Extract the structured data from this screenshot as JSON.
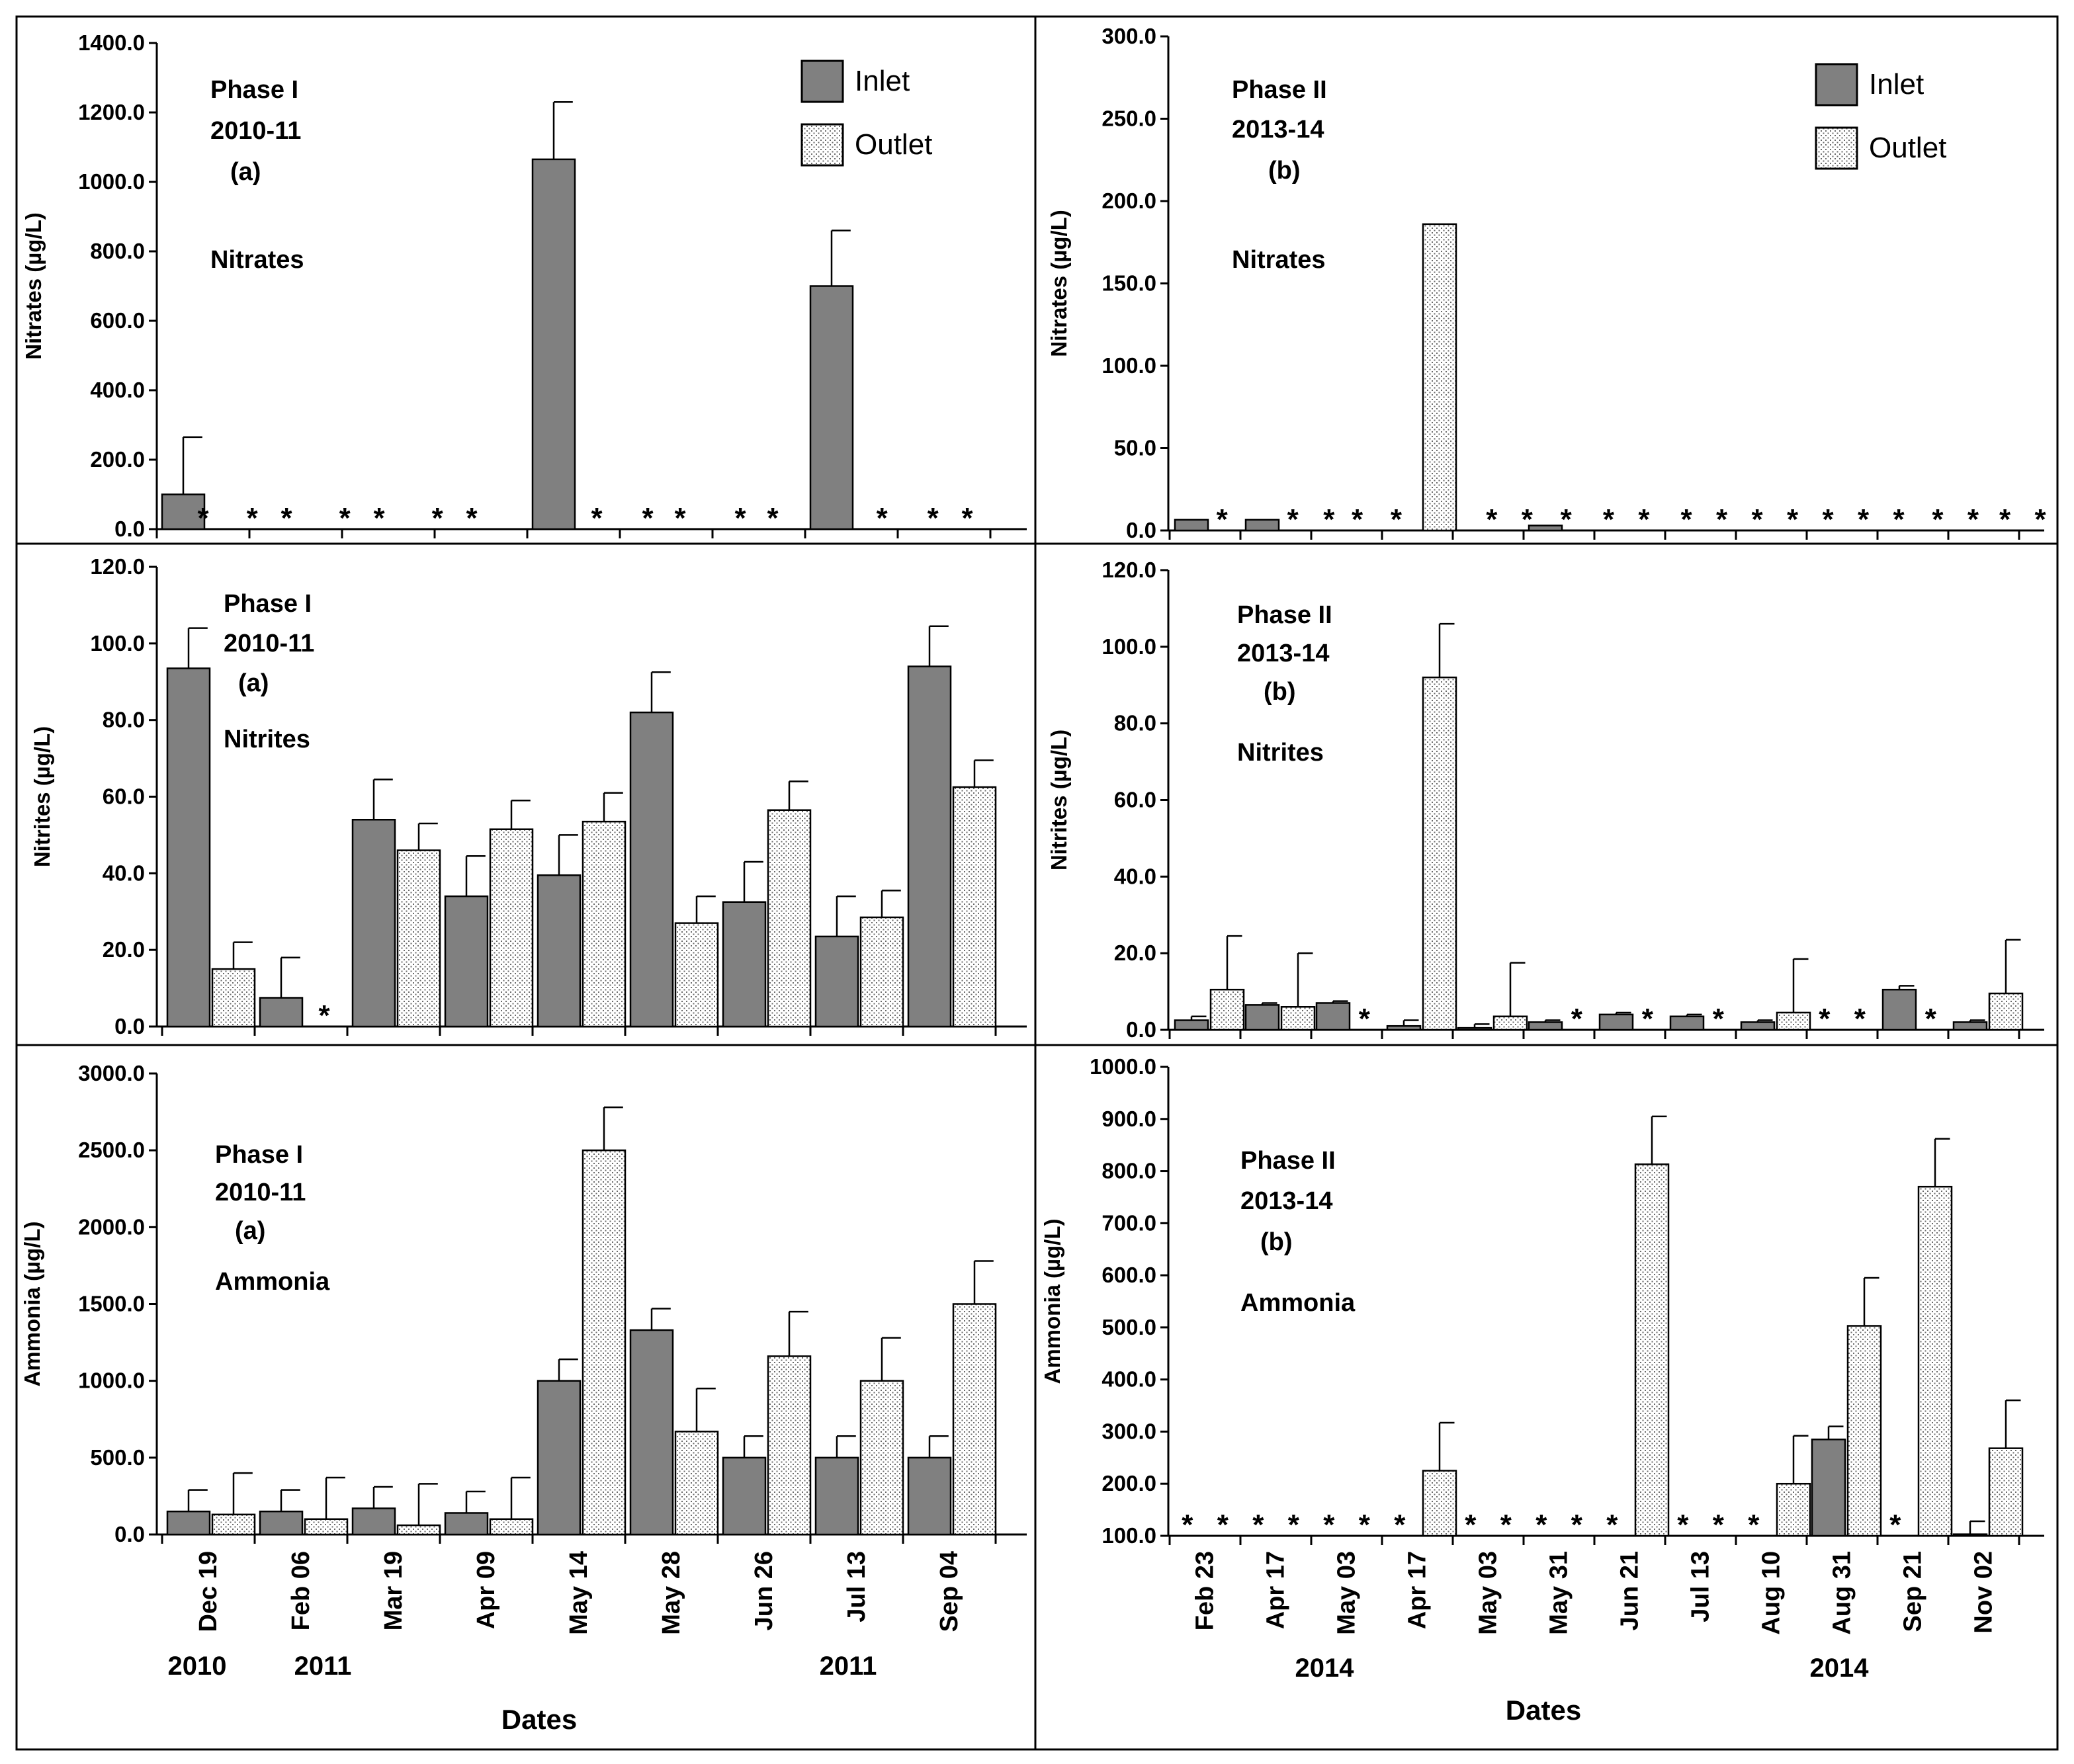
{
  "colors": {
    "inlet": "#808080",
    "outlet": "dotted-white",
    "axis": "#000000",
    "frame": "#000000"
  },
  "legend": {
    "inlet": "Inlet",
    "outlet": "Outlet"
  },
  "phase1": {
    "cat_labels": [
      "Dec 19",
      "Feb 06",
      "Mar 19",
      "Apr 09",
      "May 14",
      "May 28",
      "Jun 26",
      "Jul 13",
      "Sep 04"
    ],
    "year_labels": [
      "2010",
      "2011",
      "2011"
    ],
    "xlabel": "Dates"
  },
  "phase2": {
    "cat_labels": [
      "Feb 23",
      "Apr 17",
      "May 03",
      "Apr 17",
      "May 03",
      "May 31",
      "Jun 21",
      "Jul 13",
      "Aug 10",
      "Aug 31",
      "Sep 21",
      "Nov 02"
    ],
    "year_labels": [
      "2014",
      "2014"
    ],
    "xlabel": "Dates"
  },
  "chart_data": [
    {
      "id": "nitrates_p1",
      "type": "bar",
      "ylabel": "Nitrates (µg/L)",
      "ylim": [
        0,
        1400
      ],
      "yticks": [
        "0.0",
        "200.0",
        "400.0",
        "600.0",
        "800.0",
        "1000.0",
        "1200.0",
        "1400.0"
      ],
      "annotations": [
        "Phase I",
        "2010-11",
        "(a)",
        "Nitrates"
      ],
      "categories": [
        "Dec 19",
        "Feb 06",
        "Mar 19",
        "Apr 09",
        "May 14",
        "May 28",
        "Jun 26",
        "Jul 13",
        "Sep 04"
      ],
      "series": [
        {
          "name": "Inlet",
          "values": [
            100,
            null,
            null,
            null,
            1065,
            null,
            null,
            700,
            null
          ],
          "errors": [
            165,
            null,
            null,
            null,
            165,
            null,
            null,
            160,
            null
          ]
        },
        {
          "name": "Outlet",
          "values": [
            null,
            null,
            null,
            null,
            null,
            null,
            null,
            null,
            null
          ],
          "errors": [
            null,
            null,
            null,
            null,
            null,
            null,
            null,
            null,
            null
          ]
        }
      ],
      "not_detected_marker": "*",
      "stars": [
        0.5,
        1.03,
        1.4,
        2.03,
        2.4,
        3.03,
        3.4,
        4.75,
        5.3,
        5.65,
        6.3,
        6.65,
        7.83,
        8.38,
        8.75
      ]
    },
    {
      "id": "nitrates_p2",
      "type": "bar",
      "ylabel": "Nitrates (µg/L)",
      "ylim": [
        0,
        300
      ],
      "yticks": [
        "0.0",
        "50.0",
        "100.0",
        "150.0",
        "200.0",
        "250.0",
        "300.0"
      ],
      "annotations": [
        "Phase II",
        "2013-14",
        "(b)",
        "Nitrates"
      ],
      "categories": [
        "Feb 23",
        "Apr 17",
        "May 03",
        "Apr 17",
        "May 03",
        "May 31",
        "Jun 21",
        "Jul 13",
        "Aug 10",
        "Aug 31",
        "Sep 21",
        "Nov 02"
      ],
      "series": [
        {
          "name": "Inlet",
          "values": [
            6.5,
            6.5,
            null,
            null,
            null,
            3,
            null,
            null,
            null,
            null,
            null,
            null
          ],
          "errors": [
            null,
            null,
            null,
            null,
            null,
            null,
            null,
            null,
            null,
            null,
            null,
            null
          ]
        },
        {
          "name": "Outlet",
          "values": [
            null,
            null,
            null,
            186,
            null,
            null,
            null,
            null,
            null,
            null,
            null,
            null
          ],
          "errors": [
            null,
            null,
            null,
            null,
            null,
            null,
            null,
            null,
            null,
            null,
            null,
            null
          ]
        }
      ],
      "not_detected_marker": "*",
      "stars": [
        0.74,
        1.74,
        2.25,
        2.65,
        3.2,
        4.55,
        5.05,
        5.6,
        6.2,
        6.7,
        7.3,
        7.8,
        8.3,
        8.8,
        9.3,
        9.8,
        10.3,
        10.85,
        11.35,
        11.8,
        12.3
      ]
    },
    {
      "id": "nitrites_p1",
      "type": "bar",
      "ylabel": "Nitrites (µg/L)",
      "ylim": [
        0,
        120
      ],
      "yticks": [
        "0.0",
        "20.0",
        "40.0",
        "60.0",
        "80.0",
        "100.0",
        "120.0"
      ],
      "annotations": [
        "Phase I",
        "2010-11",
        "(a)",
        "Nitrites"
      ],
      "categories": [
        "Dec 19",
        "Feb 06",
        "Mar 19",
        "Apr 09",
        "May 14",
        "May 28",
        "Jun 26",
        "Jul 13",
        "Sep 04"
      ],
      "series": [
        {
          "name": "Inlet",
          "values": [
            93.5,
            7.5,
            54,
            34,
            39.5,
            82,
            32.5,
            23.5,
            94
          ],
          "errors": [
            10.5,
            10.5,
            10.5,
            10.5,
            10.5,
            10.5,
            10.5,
            10.5,
            10.5
          ]
        },
        {
          "name": "Outlet",
          "values": [
            15,
            null,
            46,
            51.5,
            53.5,
            27,
            56.5,
            28.5,
            62.5
          ],
          "errors": [
            7,
            null,
            7,
            7.5,
            7.5,
            7,
            7.5,
            7,
            7
          ]
        }
      ],
      "not_detected_marker": "*",
      "stars": [
        1.75
      ]
    },
    {
      "id": "nitrites_p2",
      "type": "bar",
      "ylabel": "Nitrites (µg/L)",
      "ylim": [
        0,
        120
      ],
      "yticks": [
        "0.0",
        "20.0",
        "40.0",
        "60.0",
        "80.0",
        "100.0",
        "120.0"
      ],
      "annotations": [
        "Phase II",
        "2013-14",
        "(b)",
        "Nitrites"
      ],
      "categories": [
        "Feb 23",
        "Apr 17",
        "May 03",
        "Apr 17",
        "May 03",
        "May 31",
        "Jun 21",
        "Jul 13",
        "Aug 10",
        "Aug 31",
        "Sep 21",
        "Nov 02"
      ],
      "series": [
        {
          "name": "Inlet",
          "values": [
            2.5,
            6.5,
            7,
            1,
            0.5,
            2,
            4,
            3.5,
            2,
            null,
            10.5,
            2
          ],
          "errors": [
            1,
            0.5,
            0.5,
            1.5,
            1,
            0.5,
            0.5,
            0.5,
            0.5,
            null,
            1,
            0.5
          ]
        },
        {
          "name": "Outlet",
          "values": [
            10.5,
            6,
            null,
            92,
            3.5,
            null,
            null,
            null,
            4.5,
            null,
            null,
            9.5
          ],
          "errors": [
            14,
            14,
            null,
            14,
            14,
            null,
            null,
            null,
            14,
            null,
            null,
            14
          ]
        }
      ],
      "not_detected_marker": "*",
      "stars": [
        2.75,
        5.75,
        6.75,
        7.75,
        9.25,
        9.75,
        10.75
      ]
    },
    {
      "id": "ammonia_p1",
      "type": "bar",
      "ylabel": "Ammonia (µg/L)",
      "ylim": [
        0,
        3000
      ],
      "yticks": [
        "0.0",
        "500.0",
        "1000.0",
        "1500.0",
        "2000.0",
        "2500.0",
        "3000.0"
      ],
      "annotations": [
        "Phase I",
        "2010-11",
        "(a)",
        "Ammonia"
      ],
      "categories": [
        "Dec 19",
        "Feb 06",
        "Mar 19",
        "Apr 09",
        "May 14",
        "May 28",
        "Jun 26",
        "Jul 13",
        "Sep 04"
      ],
      "series": [
        {
          "name": "Inlet",
          "values": [
            150,
            150,
            170,
            140,
            1000,
            1330,
            500,
            500,
            500
          ],
          "errors": [
            140,
            140,
            140,
            140,
            140,
            140,
            140,
            140,
            140
          ]
        },
        {
          "name": "Outlet",
          "values": [
            130,
            100,
            60,
            100,
            2500,
            670,
            1160,
            1000,
            1500
          ],
          "errors": [
            270,
            270,
            270,
            270,
            280,
            280,
            290,
            280,
            280
          ]
        }
      ],
      "not_detected_marker": "*",
      "stars": []
    },
    {
      "id": "ammonia_p2",
      "type": "bar",
      "ylabel": "Ammonia (µg/L)",
      "ylim": [
        100,
        1000
      ],
      "yticks": [
        "100.0",
        "200.0",
        "300.0",
        "400.0",
        "500.0",
        "600.0",
        "700.0",
        "800.0",
        "900.0",
        "1000.0"
      ],
      "annotations": [
        "Phase II",
        "2013-14",
        "(b)",
        "Ammonia"
      ],
      "categories": [
        "Feb 23",
        "Apr 17",
        "May 03",
        "Apr 17",
        "May 03",
        "May 31",
        "Jun 21",
        "Jul 13",
        "Aug 10",
        "Aug 31",
        "Sep 21",
        "Nov 02"
      ],
      "series": [
        {
          "name": "Inlet",
          "values": [
            null,
            null,
            null,
            null,
            null,
            null,
            null,
            null,
            null,
            285,
            null,
            103
          ],
          "errors": [
            null,
            null,
            null,
            null,
            null,
            null,
            null,
            null,
            null,
            25,
            null,
            25
          ]
        },
        {
          "name": "Outlet",
          "values": [
            null,
            null,
            null,
            225,
            null,
            null,
            813,
            null,
            200,
            503,
            770,
            268
          ],
          "errors": [
            null,
            null,
            null,
            92,
            null,
            null,
            92,
            null,
            92,
            92,
            92,
            92
          ]
        }
      ],
      "not_detected_marker": "*",
      "stars": [
        0.25,
        0.75,
        1.25,
        1.75,
        2.25,
        2.75,
        3.25,
        4.25,
        4.75,
        5.25,
        5.75,
        6.25,
        7.25,
        7.75,
        8.25,
        10.25
      ]
    }
  ]
}
